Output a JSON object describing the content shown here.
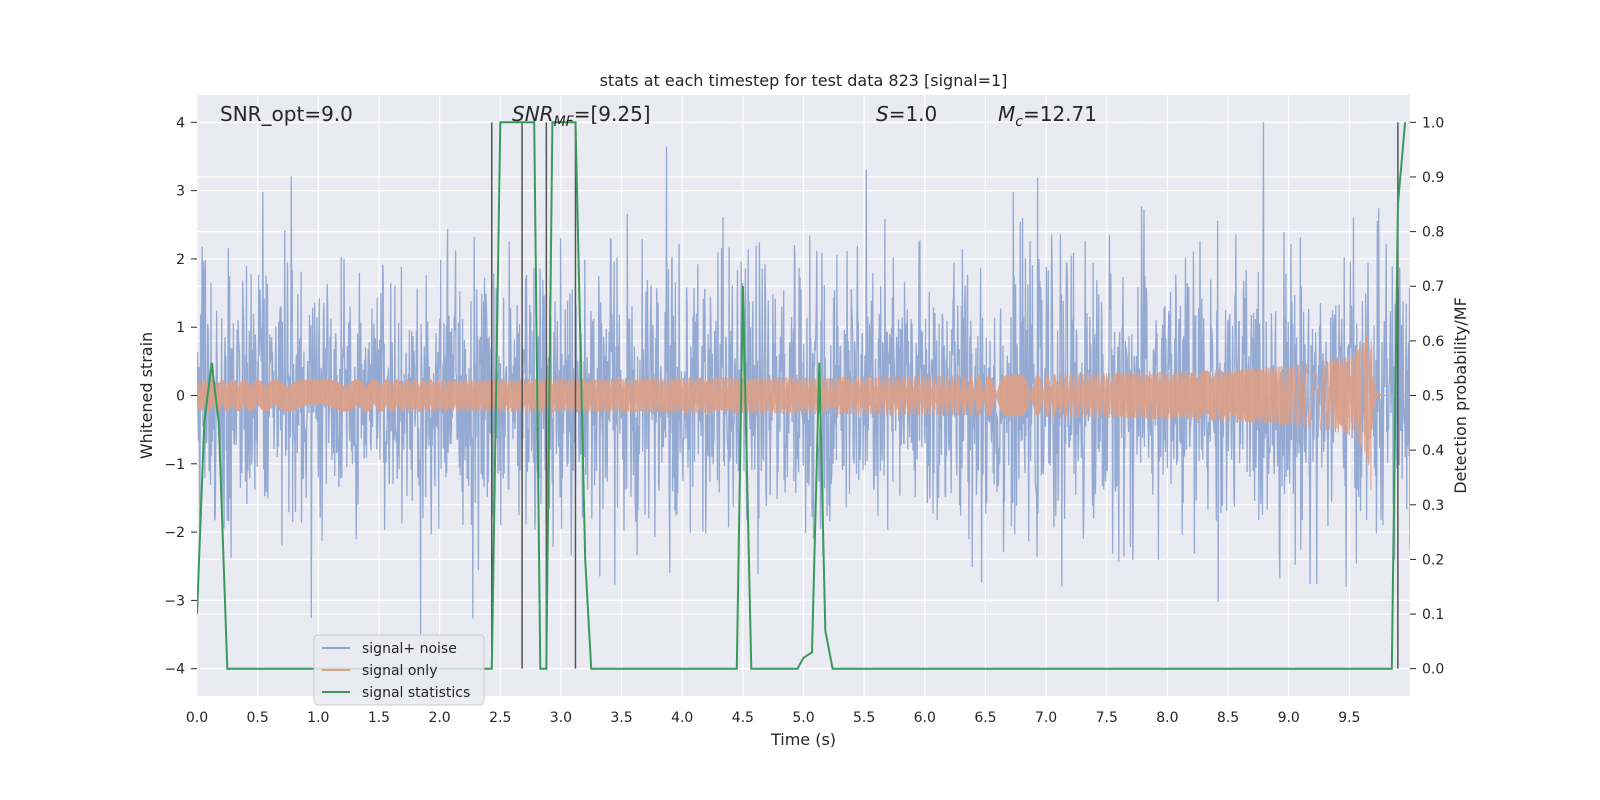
{
  "chart_data": {
    "type": "line",
    "title": "stats at each timestep for test data 823 [signal=1]",
    "xlabel": "Time (s)",
    "ylabel": "Whitened strain",
    "y2label": "Detection probability/MF",
    "xlim": [
      0.0,
      10.0
    ],
    "ylim": [
      -4.4,
      4.4
    ],
    "y2lim": [
      -0.05,
      1.05
    ],
    "x_ticks": [
      0.0,
      0.5,
      1.0,
      1.5,
      2.0,
      2.5,
      3.0,
      3.5,
      4.0,
      4.5,
      5.0,
      5.5,
      6.0,
      6.5,
      7.0,
      7.5,
      8.0,
      8.5,
      9.0,
      9.5
    ],
    "y_ticks": [
      -4,
      -3,
      -2,
      -1,
      0,
      1,
      2,
      3,
      4
    ],
    "y2_ticks": [
      0.0,
      0.1,
      0.2,
      0.3,
      0.4,
      0.5,
      0.6,
      0.7,
      0.8,
      0.9,
      1.0
    ],
    "grid": true,
    "legend_position": "lower-left",
    "annotations": [
      {
        "text": "SNR_opt=9.0",
        "x": 0.2
      },
      {
        "text": "SNR_MF=[9.25]",
        "x": 2.6
      },
      {
        "text": "S=1.0",
        "x": 5.6
      },
      {
        "text": "M_c=12.71",
        "x": 6.6
      }
    ],
    "series": [
      {
        "name": "signal+ noise",
        "color": "#8fa6d1",
        "axis": "left",
        "kind": "noise",
        "approx_sigma": 1.0,
        "approx_range": [
          -3.7,
          4.0
        ]
      },
      {
        "name": "signal only",
        "color": "#dd9e86",
        "axis": "left",
        "kind": "chirp",
        "merger_time": 9.68,
        "peak_amplitude": 1.6
      },
      {
        "name": "signal statistics",
        "color": "#3a9a5a",
        "axis": "right",
        "x": [
          0.0,
          0.06,
          0.12,
          0.18,
          0.25,
          1.5,
          2.43,
          2.5,
          2.65,
          2.78,
          2.83,
          2.88,
          2.93,
          3.12,
          3.2,
          3.25,
          4.0,
          4.45,
          4.5,
          4.57,
          4.95,
          5.0,
          5.07,
          5.13,
          5.18,
          5.24,
          7.0,
          9.85,
          9.9,
          9.96
        ],
        "values": [
          0.1,
          0.45,
          0.56,
          0.45,
          0.0,
          0.0,
          0.0,
          1.0,
          1.0,
          1.0,
          0.0,
          0.0,
          1.0,
          1.0,
          0.2,
          0.0,
          0.0,
          0.0,
          0.7,
          0.0,
          0.0,
          0.02,
          0.03,
          0.56,
          0.07,
          0.0,
          0.0,
          0.0,
          0.85,
          1.0
        ]
      },
      {
        "name": "",
        "color": "#555555",
        "axis": "right",
        "kind": "vertical-markers",
        "x": [
          2.43,
          2.68,
          2.88,
          3.12,
          9.9
        ]
      }
    ]
  }
}
